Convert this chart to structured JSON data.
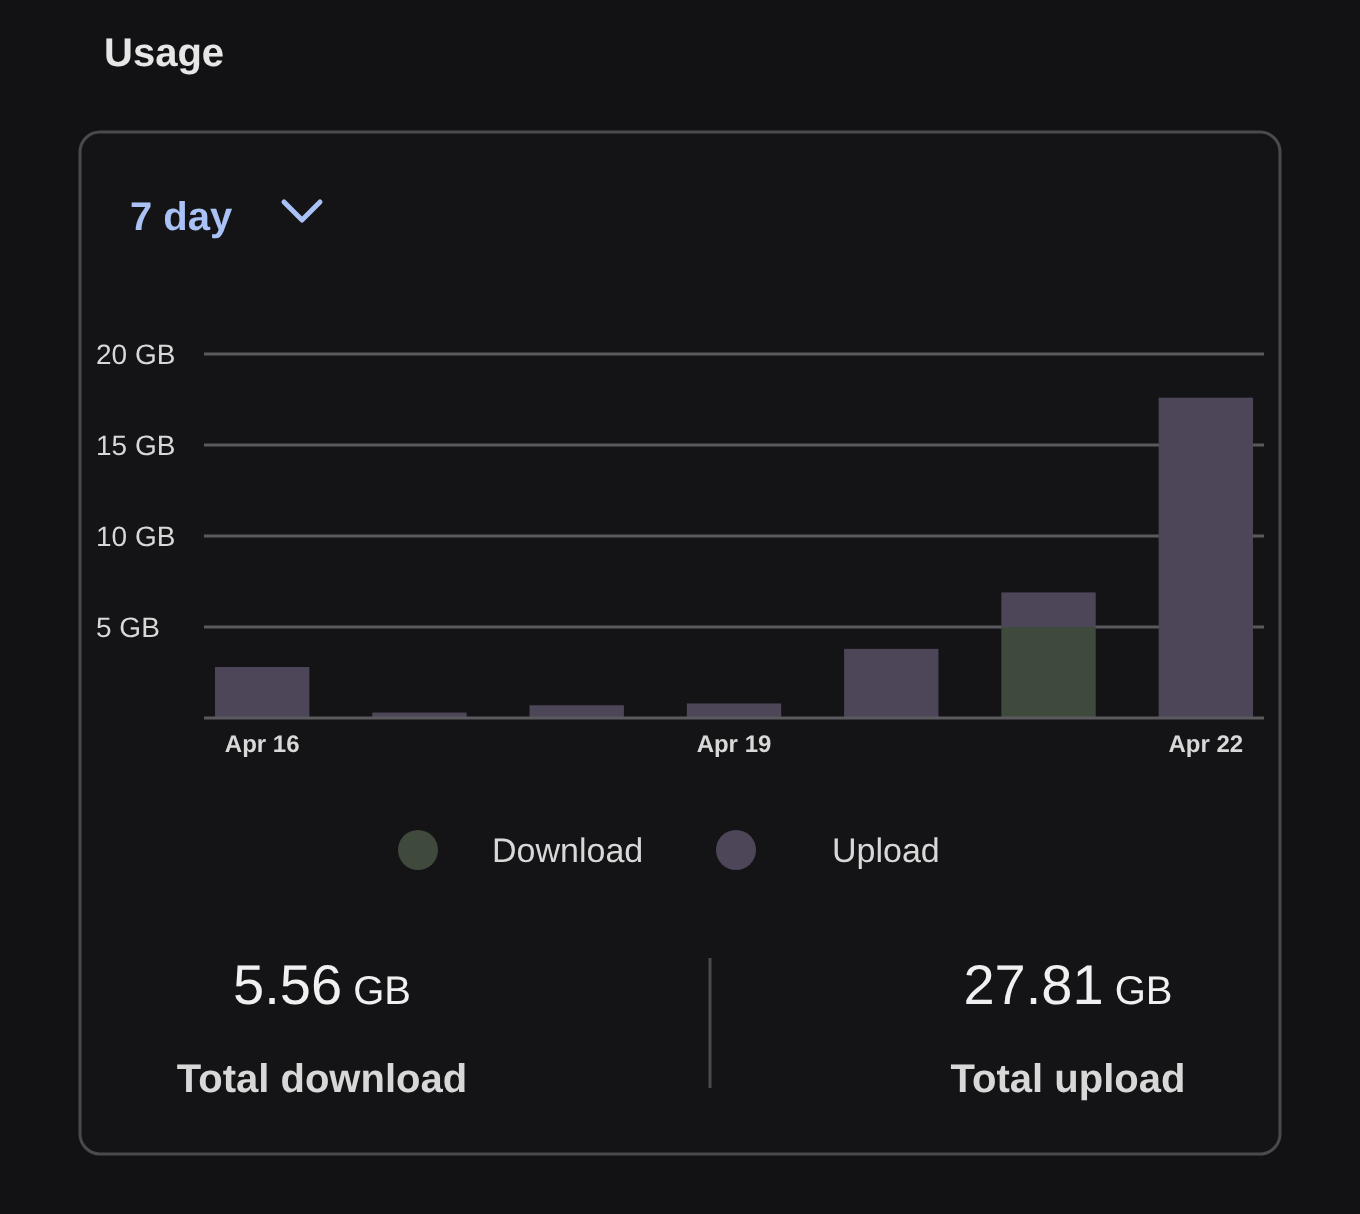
{
  "chart_data": {
    "type": "bar",
    "title": "Usage",
    "subtitle": "7 day",
    "stacked": true,
    "categories": [
      "Apr 16",
      null,
      null,
      "Apr 19",
      null,
      null,
      "Apr 22"
    ],
    "series": [
      {
        "name": "Download",
        "color": "#3f4a3c",
        "values": [
          0,
          0,
          0,
          0,
          0,
          5.0,
          null
        ]
      },
      {
        "name": "Upload",
        "color": "#4d4658",
        "values": [
          2.8,
          0.3,
          0.7,
          0.8,
          3.8,
          1.9,
          17.6
        ]
      }
    ],
    "ylim": [
      0,
      20
    ],
    "yticks": [
      {
        "value": 5,
        "label": "5 GB"
      },
      {
        "value": 10,
        "label": "10 GB"
      },
      {
        "value": 15,
        "label": "15 GB"
      },
      {
        "value": 20,
        "label": "20 GB"
      }
    ],
    "grid": "y",
    "legend": "bottom",
    "annotations": [
      "5.56 GB",
      "Total download",
      "27.81 GB",
      "Total upload"
    ]
  }
}
